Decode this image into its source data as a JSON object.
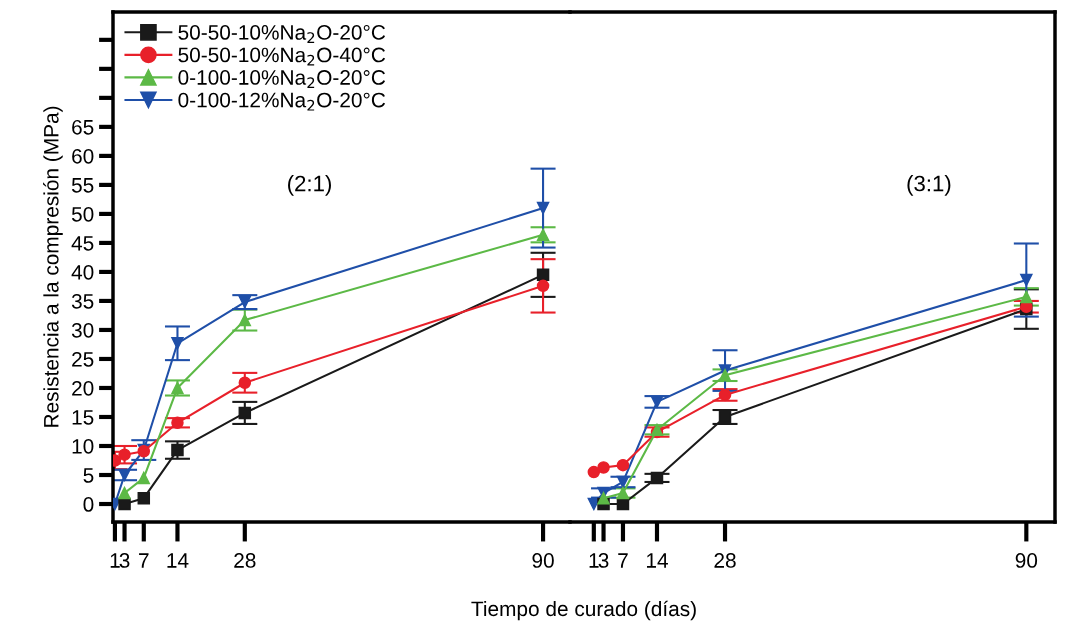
{
  "chart_data": [
    {
      "type": "line",
      "ylabel": "Resistencia a la compresión (MPa)",
      "xlabel": "Tiempo de curado (días)",
      "annotations": [
        "(2:1)"
      ],
      "xlim": [
        0.6,
        95.6
      ],
      "xticks": [
        1,
        3,
        7,
        14,
        28,
        90
      ],
      "ylim": [
        -3.1,
        84.8
      ],
      "yticks": [
        0,
        5,
        10,
        15,
        20,
        25,
        30,
        35,
        40,
        45,
        50,
        55,
        60,
        65,
        {
          "value": 70,
          "label": null
        },
        {
          "value": 75,
          "label": null
        },
        {
          "value": 80,
          "label": null
        }
      ],
      "legend": "top left",
      "grid": false,
      "series": [
        {
          "name": "50-50-10%Na$_{2}$O-20°C",
          "color": "#1a1a1a",
          "marker": "square",
          "x": [
            3,
            7,
            14,
            28,
            90
          ],
          "values": [
            0,
            1,
            9.3,
            15.7,
            39.5
          ],
          "errors": [
            null,
            null,
            1.5,
            1.9,
            3.8
          ]
        },
        {
          "name": "50-50-10%Na$_{2}$O-40°C",
          "color": "#e8202a",
          "marker": "circle",
          "x": [
            1,
            3,
            7,
            14,
            28,
            90
          ],
          "values": [
            7.5,
            8.5,
            9.1,
            14,
            20.9,
            37.6
          ],
          "errors": [
            1.5,
            1.5,
            null,
            0.8,
            1.7,
            4.6
          ]
        },
        {
          "name": "0-100-10%Na$_{2}$O-20°C",
          "color": "#5cb946",
          "marker": "triangle",
          "x": [
            3,
            7,
            14,
            28,
            90
          ],
          "values": [
            1.9,
            4.5,
            20,
            31.7,
            46.4
          ],
          "errors": [
            null,
            null,
            1.3,
            1.8,
            1.3
          ]
        },
        {
          "name": "0-100-12%Na$_{2}$O-20°C",
          "color": "#1f4fa8",
          "marker": "triangle-down",
          "x": [
            1,
            3,
            7,
            14,
            28,
            90
          ],
          "values": [
            0,
            5,
            9.3,
            27.7,
            34.8,
            51
          ],
          "errors": [
            null,
            0.9,
            1.7,
            2.9,
            1.2,
            6.8
          ]
        }
      ]
    },
    {
      "type": "line",
      "annotations": [
        "(3:1)"
      ],
      "tick_labels": "x",
      "xlim": [
        -3.9,
        95.9
      ],
      "xticks": [
        1,
        3,
        7,
        14,
        28,
        90
      ],
      "ylim": [
        -3.1,
        84.8
      ],
      "grid": false,
      "series": [
        {
          "color": "#1a1a1a",
          "marker": "square",
          "x": [
            3,
            7,
            14,
            28,
            90
          ],
          "values": [
            0,
            0,
            4.5,
            15,
            33.6
          ],
          "errors": [
            null,
            null,
            0.7,
            1.2,
            3.4
          ]
        },
        {
          "color": "#e8202a",
          "marker": "circle",
          "x": [
            1,
            3,
            7,
            14,
            28,
            90
          ],
          "values": [
            5.5,
            6.3,
            6.7,
            12.4,
            18.8,
            34
          ],
          "errors": [
            null,
            null,
            null,
            0.8,
            1,
            1
          ]
        },
        {
          "color": "#5cb946",
          "marker": "triangle",
          "x": [
            3,
            7,
            14,
            28,
            90
          ],
          "values": [
            1,
            1.9,
            12.8,
            22.2,
            35.7
          ],
          "errors": [
            null,
            0.8,
            0.8,
            1,
            1.5
          ]
        },
        {
          "color": "#1f4fa8",
          "marker": "triangle-down",
          "x": [
            1,
            3,
            7,
            14,
            28,
            90
          ],
          "values": [
            0,
            1.9,
            3.8,
            17.6,
            23,
            38.6
          ],
          "errors": [
            null,
            0.8,
            0.9,
            1,
            3.5,
            6.3
          ]
        }
      ]
    }
  ]
}
